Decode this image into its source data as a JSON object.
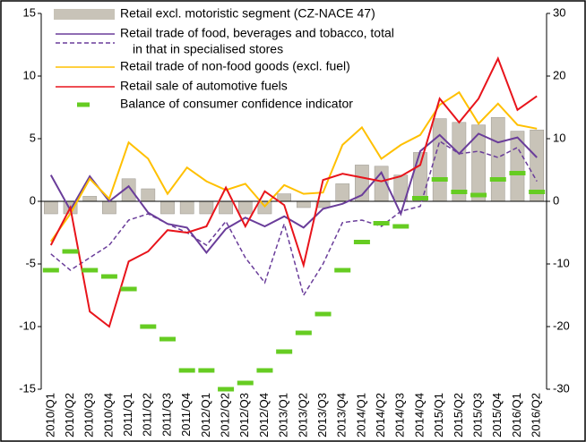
{
  "chart_data": {
    "type": "bar-line",
    "categories": [
      "2010/Q1",
      "2010/Q2",
      "2010/Q3",
      "2010/Q4",
      "2011/Q1",
      "2011/Q2",
      "2011/Q3",
      "2011/Q4",
      "2012/Q1",
      "2012/Q2",
      "2012/Q3",
      "2012/Q4",
      "2013/Q1",
      "2013/Q2",
      "2013/Q3",
      "2013/Q4",
      "2014/Q1",
      "2014/Q2",
      "2014/Q3",
      "2014/Q4",
      "2015/Q1",
      "2015/Q2",
      "2015/Q3",
      "2015/Q4",
      "2016/Q1",
      "2016/Q2"
    ],
    "ylim": [
      -15,
      15
    ],
    "yticks": [
      -15,
      -10,
      -5,
      0,
      5,
      10,
      15
    ],
    "y2lim": [
      -30,
      30
    ],
    "y2ticks": [
      -30,
      -20,
      -10,
      0,
      10,
      20,
      30
    ],
    "series": [
      {
        "name": "Retail excl. motoristic segment (CZ-NACE 47)",
        "style": "bar",
        "color": "#c8c3b8",
        "values": [
          -1,
          -1,
          0.4,
          -1,
          1.8,
          1.0,
          -1,
          -1,
          -1,
          -1,
          -1,
          -1,
          0.6,
          -0.5,
          -0.5,
          1.4,
          2.9,
          2.8,
          2.1,
          3.9,
          6.6,
          6.3,
          6.1,
          6.7,
          5.6,
          5.7
        ]
      },
      {
        "name": "Retail trade of food, beverages and tobacco, total",
        "style": "line",
        "color": "#6a3d9a",
        "values": [
          2.1,
          -0.7,
          2.0,
          0.0,
          1.2,
          -0.9,
          -1.8,
          -2.1,
          -4.1,
          -2.2,
          -1.3,
          -2.0,
          -1.2,
          -2.1,
          -0.6,
          -0.2,
          0.5,
          2.3,
          -1.0,
          4.0,
          5.3,
          3.8,
          5.4,
          4.7,
          5.1,
          3.5
        ]
      },
      {
        "name": "in that in specialised stores",
        "style": "dashed",
        "color": "#6a3d9a",
        "values": [
          -4.2,
          -5.5,
          -4.5,
          -3.5,
          -1.5,
          -1.0,
          -1.8,
          -2.5,
          -3.5,
          -1.6,
          -4.5,
          -6.5,
          -1.8,
          -7.5,
          -5.0,
          -1.7,
          -1.5,
          -2.0,
          -0.8,
          -0.4,
          4.8,
          3.8,
          4.0,
          3.5,
          4.3,
          1.6
        ]
      },
      {
        "name": "Retail trade of non-food goods (excl. fuel)",
        "style": "line",
        "color": "#ffc000",
        "values": [
          -3.2,
          -1.0,
          1.8,
          0.2,
          4.7,
          3.4,
          0.6,
          2.7,
          1.6,
          0.9,
          1.4,
          -0.4,
          1.3,
          0.6,
          0.7,
          4.5,
          5.9,
          3.4,
          4.5,
          5.3,
          7.7,
          8.7,
          6.2,
          7.8,
          6.1,
          5.8
        ]
      },
      {
        "name": "Retail sale of automotive fuels",
        "style": "line",
        "color": "#e8141b",
        "values": [
          -3.5,
          -0.5,
          -8.8,
          -10.0,
          -4.8,
          -4.0,
          -2.3,
          -2.5,
          -2.0,
          1.1,
          -2.0,
          0.8,
          -0.3,
          -5.1,
          1.7,
          2.2,
          1.9,
          1.6,
          2.0,
          2.9,
          8.2,
          6.3,
          8.2,
          11.4,
          7.3,
          8.4
        ]
      },
      {
        "name": "Balance of consumer confidence indicator",
        "style": "dash-marker",
        "color": "#66cc22",
        "axis": "y2",
        "values": [
          -11,
          -8,
          -11,
          -12,
          -14,
          -20,
          -22,
          -27,
          -27,
          -30,
          -29,
          -27,
          -24,
          -21,
          -18,
          -11,
          -6.5,
          -3.5,
          -4.0,
          0.5,
          3.5,
          1.5,
          1.0,
          3.5,
          4.5,
          1.5
        ]
      }
    ]
  }
}
